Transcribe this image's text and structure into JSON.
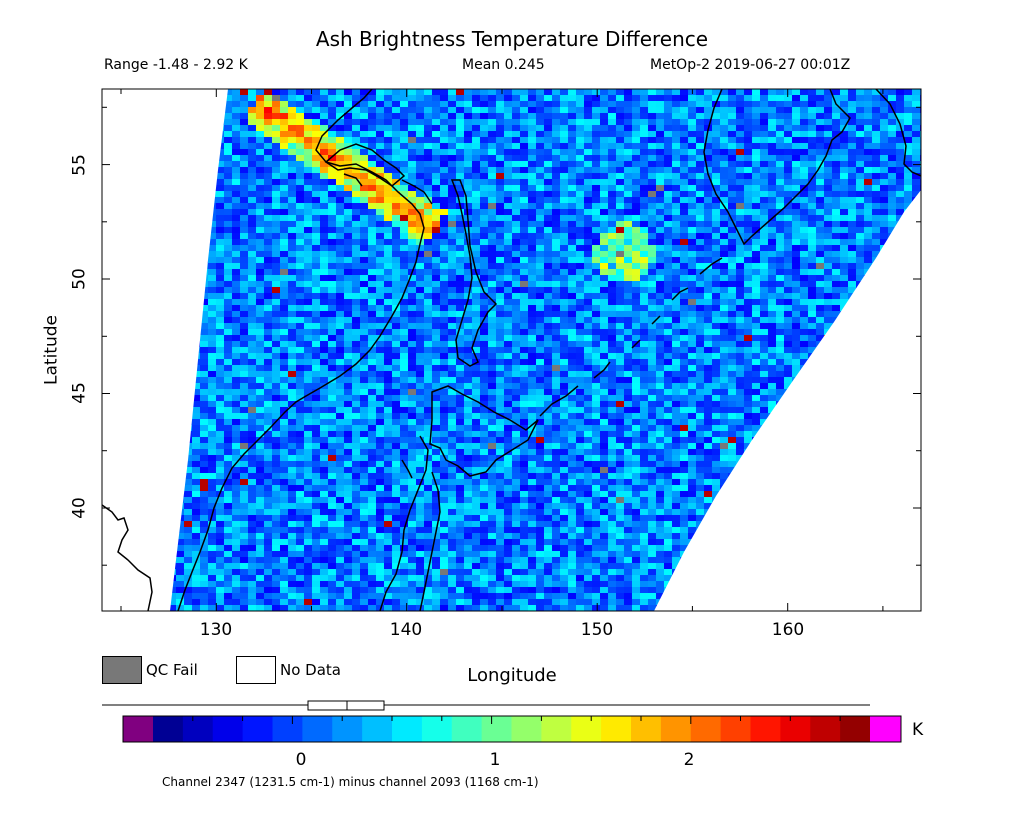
{
  "title": "Ash Brightness Temperature Difference",
  "range_text": "Range -1.48 - 2.92 K",
  "mean_text": "Mean 0.245",
  "satellite_text": "MetOp-2 2019-06-27 00:01Z",
  "ylabel": "Latitude",
  "xlabel": "Longitude",
  "legend": {
    "qc_fail": "QC Fail",
    "no_data": "No Data"
  },
  "colorbar": {
    "unit": "K",
    "min": -0.7,
    "max": 2.9,
    "ticks": [
      "0",
      "1",
      "2"
    ],
    "caption": "Channel 2347 (1231.5 cm-1) minus channel 2093 (1168 cm-1)",
    "underflow_color": "#800080",
    "overflow_color": "#ff00ff",
    "colormap": [
      "#00007f",
      "#0000ff",
      "#007fff",
      "#00ffff",
      "#7fff7f",
      "#ffff00",
      "#ff7f00",
      "#ff0000",
      "#7f0000"
    ]
  },
  "map": {
    "lon_range": [
      124,
      167
    ],
    "lat_range": [
      35.5,
      58.3
    ],
    "xticks": [
      "130",
      "140",
      "150",
      "160"
    ],
    "yticks": [
      "40",
      "45",
      "50",
      "55"
    ],
    "qc_fail_color": "#787878",
    "no_data_color": "#ffffff"
  }
}
